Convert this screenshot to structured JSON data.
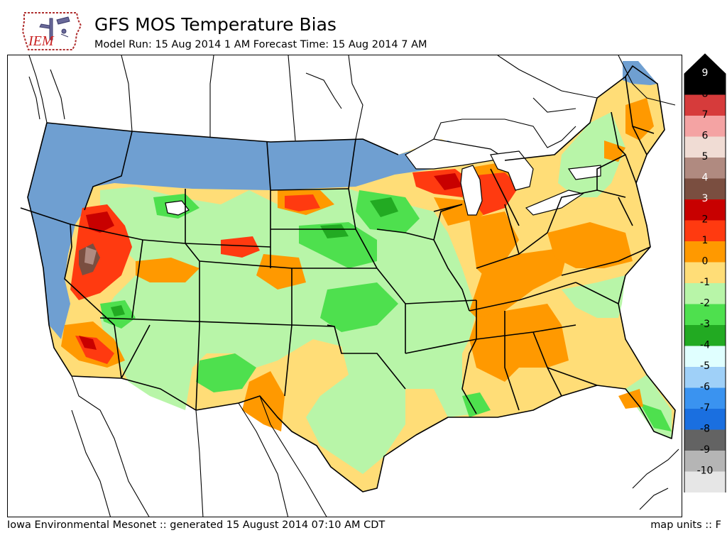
{
  "header": {
    "logo_text": "IEM",
    "title": "GFS MOS Temperature Bias",
    "subtitle": "Model Run: 15 Aug 2014 1 AM Forecast Time: 15 Aug 2014 7 AM"
  },
  "footer": {
    "credit": "Iowa Environmental Mesonet :: generated 15 August 2014 07:10 AM CDT",
    "units": "map units :: F"
  },
  "colorbar": {
    "levels": [
      {
        "label": "9",
        "color": "#000000"
      },
      {
        "label": "8",
        "color": "#d63b3b"
      },
      {
        "label": "7",
        "color": "#f4a3a3"
      },
      {
        "label": "6",
        "color": "#f0dcd4"
      },
      {
        "label": "5",
        "color": "#b08a80"
      },
      {
        "label": "4",
        "color": "#7a4e40"
      },
      {
        "label": "3",
        "color": "#c80000"
      },
      {
        "label": "2",
        "color": "#ff3a10"
      },
      {
        "label": "1",
        "color": "#ff9900"
      },
      {
        "label": "0",
        "color": "#ffdd77"
      },
      {
        "label": "-1",
        "color": "#b8f5a8"
      },
      {
        "label": "-2",
        "color": "#4ee04e"
      },
      {
        "label": "-3",
        "color": "#22aa22"
      },
      {
        "label": "-4",
        "color": "#e0ffff"
      },
      {
        "label": "-5",
        "color": "#9fd0f8"
      },
      {
        "label": "-6",
        "color": "#3a93f0"
      },
      {
        "label": "-7",
        "color": "#1a6fe0"
      },
      {
        "label": "-8",
        "color": "#636363"
      },
      {
        "label": "-9",
        "color": "#b5b5b5"
      },
      {
        "label": "-10",
        "color": "#e6e6e6"
      }
    ]
  },
  "map": {
    "missing_color": "#6f9fd1",
    "lake_color": "#ffffff"
  }
}
